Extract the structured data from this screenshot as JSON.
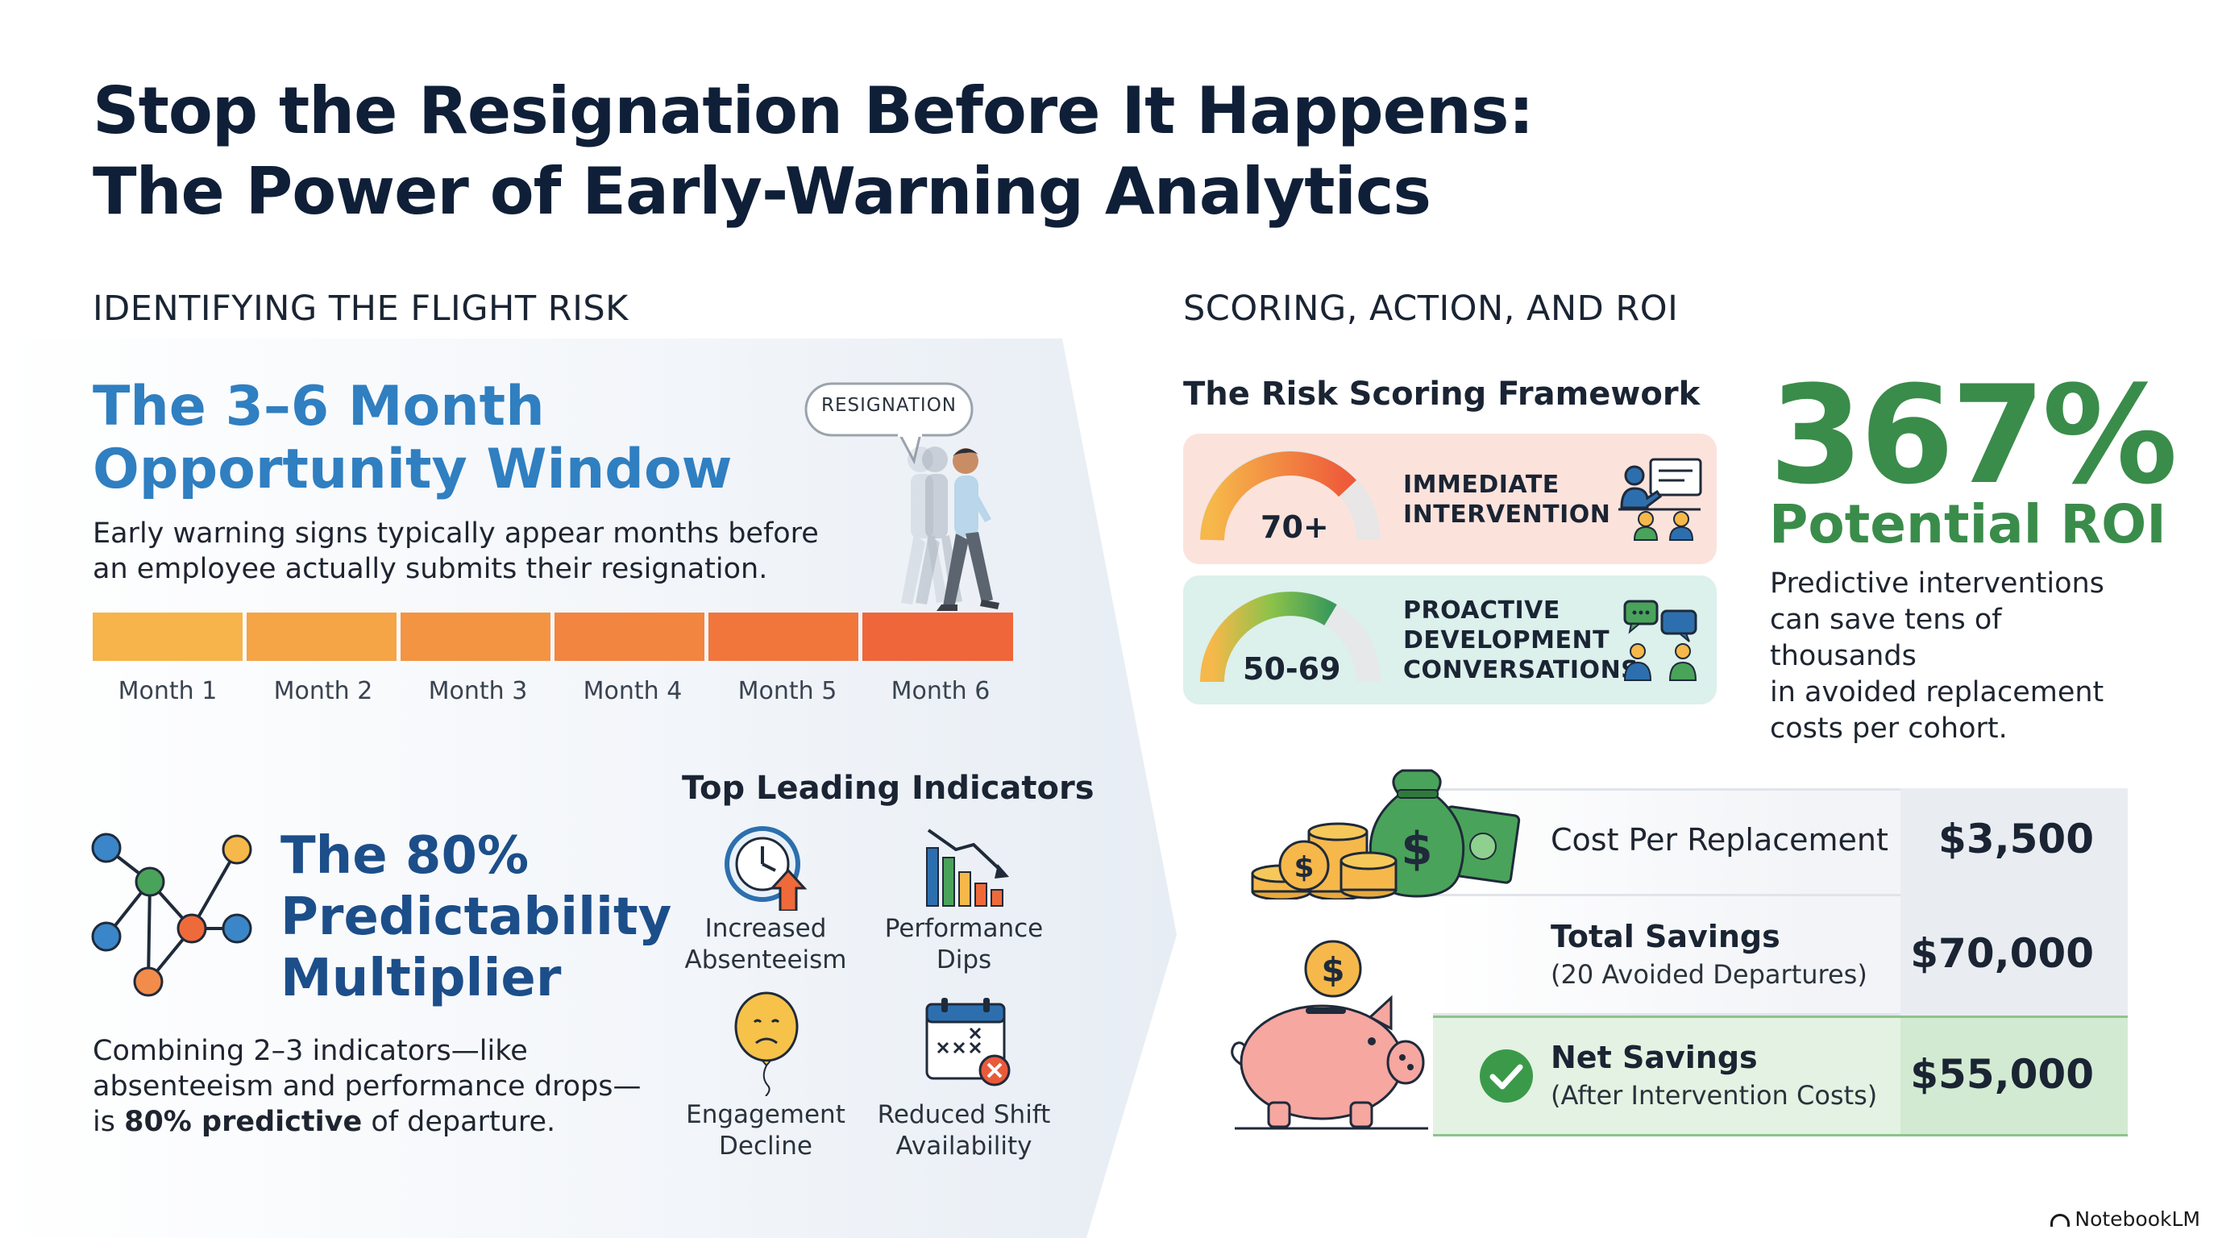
{
  "title_line1": "Stop the Resignation Before It Happens:",
  "title_line2": "The Power of Early-Warning Analytics",
  "left_section": {
    "heading": "IDENTIFYING THE FLIGHT RISK",
    "window": {
      "title_line1": "The 3–6 Month",
      "title_line2": "Opportunity Window",
      "desc_line1": "Early warning signs typically appear months before",
      "desc_line2": "an employee actually submits their resignation.",
      "bubble": "RESIGNATION",
      "months": [
        "Month 1",
        "Month 2",
        "Month 3",
        "Month 4",
        "Month 5",
        "Month 6"
      ]
    },
    "multiplier": {
      "title_line1": "The 80%",
      "title_line2": "Predictability",
      "title_line3": "Multiplier",
      "desc_line1": "Combining 2–3 indicators—like",
      "desc_line2": "absenteeism and performance drops—",
      "desc_pre": "is ",
      "desc_bold": "80% predictive",
      "desc_post": " of departure."
    },
    "indicators": {
      "heading": "Top Leading Indicators",
      "items": [
        {
          "line1": "Increased",
          "line2": "Absenteeism",
          "icon": "clock-arrow-icon"
        },
        {
          "line1": "Performance",
          "line2": "Dips",
          "icon": "bar-chart-down-icon"
        },
        {
          "line1": "Engagement",
          "line2": "Decline",
          "icon": "sad-balloon-icon"
        },
        {
          "line1": "Reduced Shift",
          "line2": "Availability",
          "icon": "calendar-x-icon"
        }
      ]
    }
  },
  "right_section": {
    "heading": "SCORING, ACTION, AND ROI",
    "framework": {
      "heading": "The Risk Scoring Framework",
      "cards": [
        {
          "score": "70+",
          "line1": "IMMEDIATE",
          "line2": "INTERVENTION",
          "line3": "",
          "color": "#fbe3dc",
          "icon": "presenter-icon"
        },
        {
          "score": "50-69",
          "line1": "PROACTIVE",
          "line2": "DEVELOPMENT",
          "line3": "CONVERSATIONS",
          "color": "#dcf0ec",
          "icon": "conversation-icon"
        }
      ]
    },
    "roi": {
      "value": "367%",
      "label": "Potential ROI",
      "desc_line1": "Predictive interventions",
      "desc_line2": "can save tens of thousands",
      "desc_line3": "in avoided replacement",
      "desc_line4": "costs per cohort."
    },
    "costs": {
      "row1_label": "Cost Per Replacement",
      "row1_value": "$3,500",
      "row2_label": "Total Savings",
      "row2_sub": "(20 Avoided Departures)",
      "row2_value": "$70,000",
      "row3_label": "Net Savings",
      "row3_sub": "(After Intervention Costs)",
      "row3_value": "$55,000"
    }
  },
  "brand": "NotebookLM",
  "colors": {
    "blue": "#2f7fc1",
    "navy": "#1c4e8a",
    "green": "#3a8c4a",
    "orange": "#f07a3a"
  }
}
